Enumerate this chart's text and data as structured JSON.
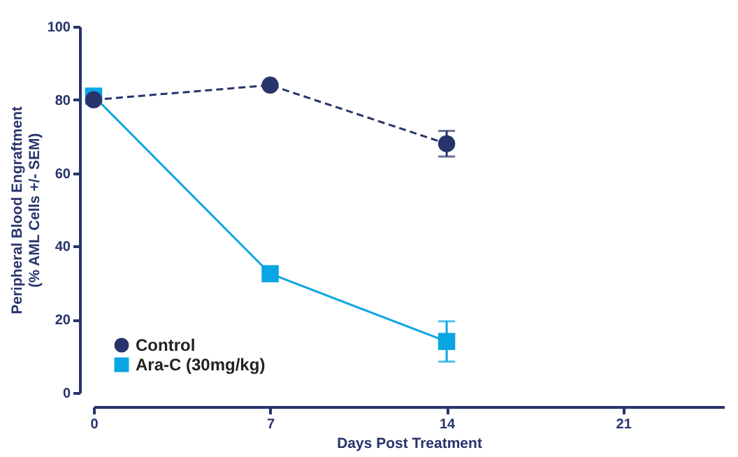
{
  "chart_data": {
    "type": "line",
    "xlabel": "Days Post Treatment",
    "ylabel": "Peripheral Blood Engraftment\n(% AML Cells +/- SEM)",
    "x": [
      0,
      7,
      14
    ],
    "xlim": [
      0,
      25
    ],
    "xticks": [
      0,
      7,
      14,
      21
    ],
    "ylim": [
      0,
      100
    ],
    "yticks": [
      0,
      20,
      40,
      60,
      80,
      100
    ],
    "legend": "bottom left",
    "grid": false,
    "series": [
      {
        "name": "Control",
        "color": "#27346b",
        "values": [
          80,
          84,
          68
        ],
        "errors": [
          null,
          null,
          3.5
        ],
        "marker": "circle",
        "line_style": "dashed"
      },
      {
        "name": "Ara-C (30mg/kg)",
        "color": "#0aa5e3",
        "values": [
          81,
          32.5,
          14
        ],
        "errors": [
          null,
          null,
          5.5
        ],
        "marker": "square",
        "line_style": "solid"
      }
    ]
  }
}
